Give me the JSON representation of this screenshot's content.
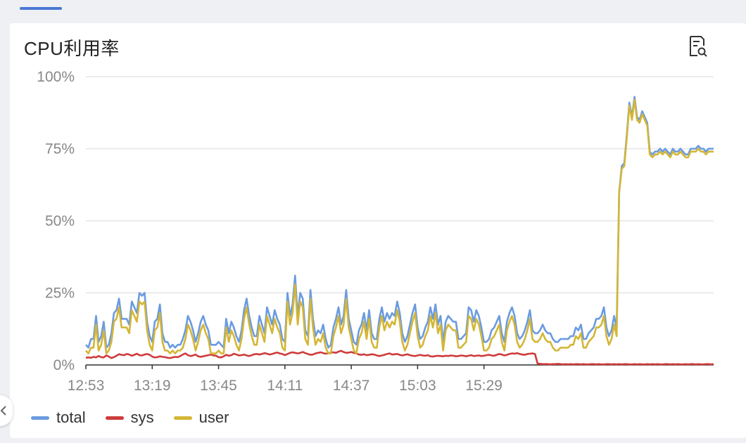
{
  "panel": {
    "title": "CPU利用率",
    "detail_icon": "document-search-icon"
  },
  "colors": {
    "total": "#6a9be0",
    "sys": "#cf3b3b",
    "user": "#d4b636",
    "grid": "#e6e6e6",
    "tab_indicator": "#4a78d4"
  },
  "chart_data": {
    "type": "line",
    "title": "CPU利用率",
    "xlabel": "",
    "ylabel": "",
    "ylim": [
      0,
      100
    ],
    "y_ticks": [
      "0%",
      "25%",
      "50%",
      "75%",
      "100%"
    ],
    "y_tick_values": [
      0,
      25,
      50,
      75,
      100
    ],
    "x_ticks": [
      "12:53",
      "13:19",
      "13:45",
      "14:11",
      "14:37",
      "15:03",
      "15:29"
    ],
    "x_tick_indices": [
      0,
      26,
      52,
      78,
      104,
      130,
      156
    ],
    "legend_position": "bottom-left",
    "grid": true,
    "series": [
      {
        "name": "total",
        "color": "#6a9be0",
        "values": [
          7,
          6,
          9,
          9,
          17,
          8,
          10,
          15,
          6,
          7,
          11,
          18,
          19,
          23,
          16,
          16,
          16,
          14,
          22,
          20,
          18,
          25,
          24,
          25,
          15,
          10,
          8,
          15,
          16,
          21,
          11,
          8,
          8,
          6,
          7,
          6,
          7,
          7,
          9,
          12,
          17,
          15,
          12,
          8,
          11,
          15,
          17,
          14,
          12,
          7,
          7,
          7,
          8,
          7,
          6,
          16,
          11,
          15,
          13,
          10,
          8,
          12,
          19,
          23,
          17,
          13,
          10,
          10,
          17,
          14,
          11,
          20,
          17,
          14,
          19,
          16,
          14,
          9,
          8,
          25,
          17,
          21,
          31,
          17,
          25,
          23,
          12,
          10,
          26,
          16,
          10,
          12,
          11,
          14,
          9,
          6,
          7,
          13,
          16,
          20,
          14,
          17,
          26,
          16,
          12,
          8,
          7,
          12,
          14,
          18,
          12,
          19,
          11,
          9,
          9,
          16,
          20,
          15,
          18,
          16,
          18,
          17,
          22,
          18,
          11,
          8,
          10,
          14,
          18,
          21,
          13,
          9,
          10,
          13,
          15,
          20,
          16,
          21,
          14,
          17,
          8,
          15,
          17,
          16,
          15,
          15,
          9,
          9,
          10,
          11,
          20,
          19,
          15,
          19,
          17,
          13,
          8,
          8,
          9,
          12,
          13,
          15,
          17,
          11,
          8,
          15,
          18,
          20,
          17,
          11,
          9,
          10,
          12,
          15,
          19,
          12,
          11,
          11,
          12,
          14,
          12,
          11,
          11,
          9,
          8,
          8,
          9,
          9,
          9,
          9,
          10,
          10,
          13,
          12,
          14,
          9,
          9,
          11,
          12,
          13,
          16,
          16,
          17,
          20,
          13,
          10,
          12,
          17,
          13,
          60,
          69,
          70,
          80,
          91,
          86,
          93,
          86,
          85,
          88,
          86,
          84,
          74,
          73,
          74,
          74,
          75,
          74,
          75,
          74,
          73,
          75,
          74,
          74,
          75,
          74,
          73,
          73,
          75,
          75,
          75,
          76,
          75,
          75,
          74,
          75,
          75,
          75
        ]
      },
      {
        "name": "sys",
        "color": "#cf3b3b",
        "values": [
          2.5,
          2.6,
          2.5,
          2.8,
          2.6,
          3.1,
          2.7,
          2.6,
          3.3,
          2.9,
          2.4,
          2.7,
          3.2,
          3.7,
          3.5,
          3.4,
          3.8,
          3.6,
          3.2,
          3.5,
          3.9,
          3.4,
          3.3,
          3.6,
          3.8,
          3.5,
          2.9,
          2.6,
          2.7,
          3.0,
          2.8,
          2.7,
          2.5,
          2.4,
          2.6,
          2.8,
          2.7,
          3.1,
          3.6,
          4.0,
          3.4,
          3.1,
          3.3,
          3.6,
          3.0,
          2.8,
          3.0,
          3.2,
          3.4,
          3.6,
          3.3,
          3.2,
          2.7,
          2.6,
          3.0,
          3.5,
          3.2,
          3.4,
          3.9,
          3.6,
          3.3,
          3.4,
          3.6,
          3.3,
          3.1,
          3.4,
          3.7,
          3.8,
          3.6,
          3.8,
          4.1,
          3.9,
          3.6,
          3.8,
          4.1,
          4.3,
          4.0,
          3.8,
          3.4,
          3.8,
          4.2,
          4.4,
          4.2,
          4.0,
          4.2,
          4.5,
          4.1,
          3.8,
          3.5,
          3.6,
          4.0,
          4.2,
          4.4,
          4.1,
          3.9,
          4.0,
          4.3,
          4.4,
          4.2,
          4.6,
          4.9,
          4.5,
          4.2,
          4.3,
          4.5,
          4.2,
          4.0,
          3.6,
          3.5,
          3.7,
          3.4,
          3.5,
          3.7,
          3.6,
          3.3,
          3.1,
          3.3,
          3.5,
          3.8,
          4.0,
          3.6,
          3.7,
          3.8,
          3.5,
          3.3,
          3.5,
          3.7,
          3.4,
          3.2,
          3.1,
          3.3,
          3.5,
          3.3,
          3.2,
          3.4,
          3.0,
          2.9,
          3.1,
          3.2,
          3.1,
          3.0,
          3.2,
          3.1,
          3.3,
          3.2,
          3.0,
          3.1,
          3.3,
          3.2,
          3.0,
          3.2,
          3.4,
          3.1,
          3.2,
          3.3,
          3.1,
          3.2,
          3.4,
          3.5,
          3.3,
          3.2,
          3.5,
          3.8,
          3.6,
          3.3,
          3.5,
          3.8,
          4.0,
          3.9,
          4.1,
          3.8,
          3.6,
          3.5,
          3.8,
          3.9,
          4.0,
          3.8,
          0.5,
          0.4,
          0.3,
          0.3,
          0.3,
          0.2,
          0.3,
          0.3,
          0.4,
          0.3,
          0.2,
          0.3,
          0.2,
          0.3,
          0.2,
          0.3,
          0.3,
          0.2,
          0.3,
          0.2,
          0.2,
          0.3,
          0.3,
          0.2,
          0.3,
          0.2,
          0.2,
          0.3,
          0.3,
          0.2,
          0.3,
          0.2,
          0.3,
          0.2,
          0.3,
          0.3,
          0.2,
          0.2,
          0.3,
          0.2,
          0.3,
          0.2,
          0.2,
          0.3,
          0.2,
          0.3,
          0.2,
          0.3,
          0.2,
          0.2,
          0.3,
          0.3,
          0.2,
          0.3,
          0.2,
          0.3,
          0.2,
          0.2,
          0.3,
          0.2,
          0.3,
          0.3,
          0.2,
          0.3,
          0.2,
          0.2,
          0.3,
          0.3,
          0.2,
          0.3
        ]
      },
      {
        "name": "user",
        "color": "#d4b636",
        "values": [
          5,
          4,
          6,
          6,
          14,
          5,
          7,
          12,
          4,
          5,
          8,
          15,
          16,
          20,
          13,
          13,
          13,
          11,
          19,
          17,
          15,
          22,
          21,
          22,
          12,
          7,
          5,
          12,
          13,
          18,
          8,
          5,
          5,
          4,
          5,
          4,
          5,
          5,
          6,
          9,
          14,
          12,
          9,
          5,
          8,
          12,
          14,
          11,
          9,
          4,
          4,
          4,
          5,
          4,
          4,
          13,
          8,
          12,
          10,
          7,
          5,
          9,
          16,
          20,
          14,
          10,
          7,
          7,
          14,
          11,
          8,
          17,
          14,
          11,
          16,
          13,
          11,
          6,
          5,
          22,
          14,
          18,
          28,
          14,
          22,
          20,
          9,
          7,
          23,
          13,
          7,
          9,
          8,
          11,
          6,
          4,
          4,
          10,
          13,
          17,
          11,
          14,
          23,
          13,
          9,
          5,
          4,
          9,
          11,
          15,
          9,
          16,
          8,
          6,
          6,
          13,
          17,
          12,
          15,
          13,
          15,
          14,
          19,
          15,
          8,
          5,
          7,
          11,
          15,
          18,
          10,
          6,
          7,
          10,
          12,
          17,
          13,
          18,
          11,
          14,
          5,
          12,
          14,
          13,
          12,
          12,
          6,
          6,
          7,
          8,
          17,
          16,
          12,
          16,
          14,
          10,
          5,
          5,
          6,
          9,
          10,
          12,
          14,
          8,
          5,
          12,
          15,
          17,
          14,
          8,
          6,
          7,
          9,
          12,
          16,
          9,
          8,
          8,
          9,
          11,
          9,
          8,
          8,
          6,
          5,
          5,
          6,
          6,
          6,
          6,
          7,
          7,
          10,
          9,
          11,
          6,
          6,
          8,
          9,
          10,
          13,
          13,
          14,
          17,
          10,
          7,
          9,
          14,
          10,
          60,
          68,
          69,
          79,
          90,
          85,
          92,
          85,
          84,
          87,
          85,
          83,
          73,
          72,
          73,
          73,
          74,
          73,
          74,
          73,
          72,
          74,
          73,
          73,
          74,
          73,
          72,
          72,
          74,
          74,
          74,
          75,
          74,
          74,
          73,
          74,
          74,
          74
        ]
      }
    ]
  },
  "legend": {
    "items": [
      {
        "label": "total",
        "color": "#6a9be0"
      },
      {
        "label": "sys",
        "color": "#cf3b3b"
      },
      {
        "label": "user",
        "color": "#d4b636"
      }
    ]
  },
  "sidebar": {
    "collapse_icon": "chevron-left-icon"
  }
}
